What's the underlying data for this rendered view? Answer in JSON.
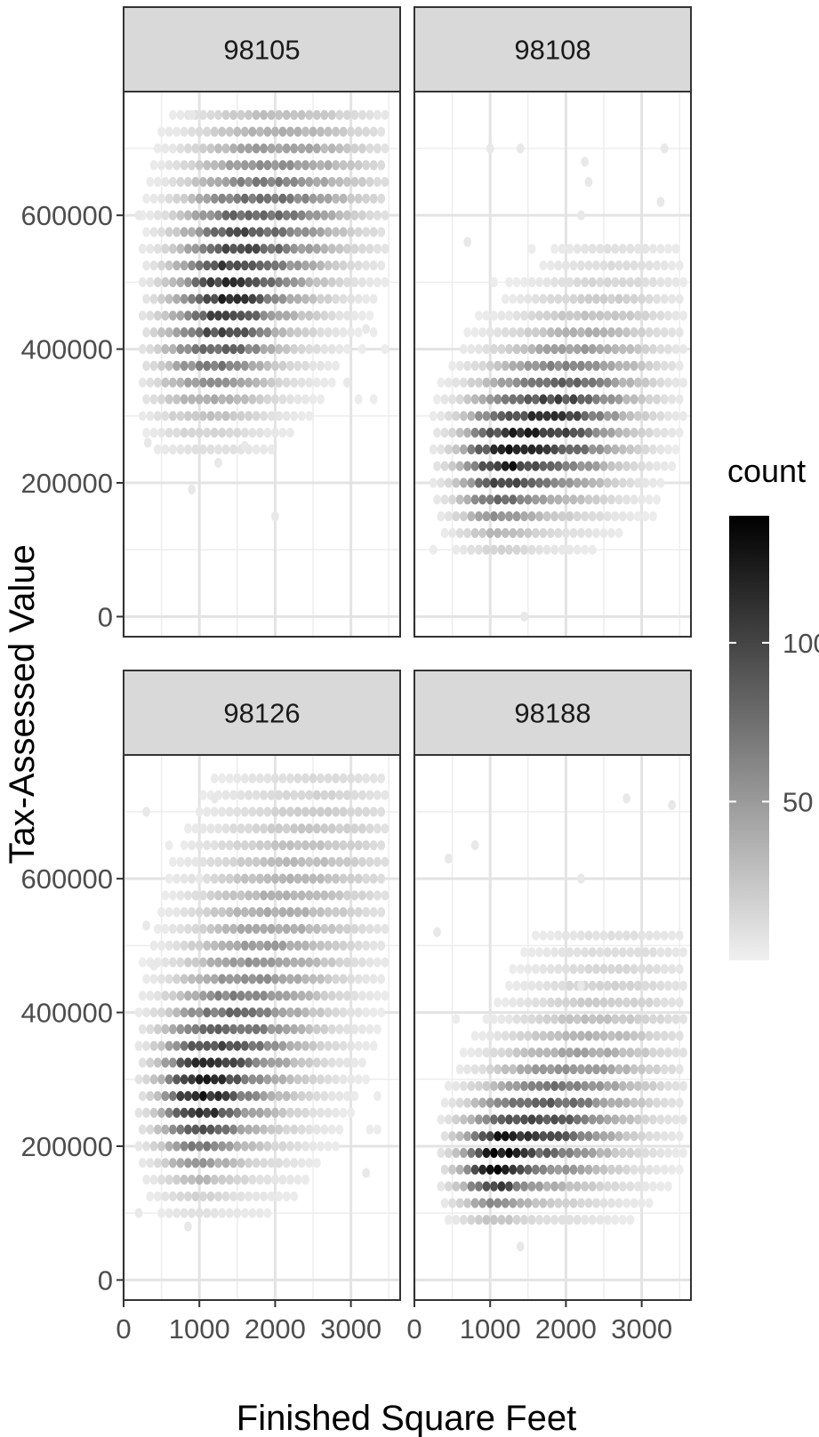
{
  "chart_data": {
    "type": "heatmap",
    "subtype": "hexbin",
    "xlabel": "Finished Square Feet",
    "ylabel": "Tax-Assessed Value",
    "xlim": [
      0,
      3650
    ],
    "ylim": [
      -30000,
      785000
    ],
    "x_ticks": [
      0,
      1000,
      2000,
      3000
    ],
    "x_tick_labels": [
      "0",
      "1000",
      "2000",
      "3000"
    ],
    "y_ticks": [
      0,
      200000,
      400000,
      600000
    ],
    "y_tick_labels": [
      "0",
      "200000",
      "400000",
      "600000"
    ],
    "grid": true,
    "legend": {
      "title": "count",
      "position": "right",
      "range": [
        0,
        140
      ],
      "ticks": [
        50,
        100
      ],
      "tick_labels": [
        "50",
        "100"
      ],
      "low_color": "#f0f0f0",
      "high_color": "#000000"
    },
    "panels": [
      {
        "name": "98105",
        "blobs": [
          {
            "x": 1300,
            "y": 460000,
            "sx": 380,
            "sy": 90000,
            "peak": 75
          },
          {
            "x": 1750,
            "y": 560000,
            "sx": 550,
            "sy": 110000,
            "peak": 55
          },
          {
            "x": 2400,
            "y": 650000,
            "sx": 650,
            "sy": 90000,
            "peak": 28
          },
          {
            "x": 800,
            "y": 380000,
            "sx": 300,
            "sy": 70000,
            "peak": 20
          }
        ],
        "x_range": [
          250,
          3450
        ],
        "y_range": [
          250000,
          750000
        ],
        "extra": [
          [
            200,
            600000
          ],
          [
            320,
            260000
          ],
          [
            900,
            190000
          ],
          [
            1600,
            255000
          ],
          [
            2000,
            150000
          ],
          [
            2950,
            350000
          ],
          [
            3200,
            430000
          ],
          [
            900,
            750000
          ],
          [
            1250,
            230000
          ]
        ]
      },
      {
        "name": "98108",
        "blobs": [
          {
            "x": 1100,
            "y": 220000,
            "sx": 320,
            "sy": 60000,
            "peak": 85
          },
          {
            "x": 1700,
            "y": 280000,
            "sx": 500,
            "sy": 70000,
            "peak": 80
          },
          {
            "x": 2200,
            "y": 330000,
            "sx": 500,
            "sy": 80000,
            "peak": 35
          },
          {
            "x": 2700,
            "y": 420000,
            "sx": 500,
            "sy": 110000,
            "peak": 12
          }
        ],
        "x_range": [
          250,
          3550
        ],
        "y_range": [
          100000,
          550000
        ],
        "extra": [
          [
            1450,
            0
          ],
          [
            1000,
            700000
          ],
          [
            1400,
            700000
          ],
          [
            2200,
            600000
          ],
          [
            2300,
            650000
          ],
          [
            3300,
            700000
          ],
          [
            3250,
            620000
          ],
          [
            2250,
            680000
          ],
          [
            700,
            560000
          ],
          [
            1250,
            450000
          ]
        ]
      },
      {
        "name": "98126",
        "blobs": [
          {
            "x": 950,
            "y": 270000,
            "sx": 300,
            "sy": 70000,
            "peak": 90
          },
          {
            "x": 1400,
            "y": 330000,
            "sx": 450,
            "sy": 90000,
            "peak": 55
          },
          {
            "x": 1900,
            "y": 460000,
            "sx": 600,
            "sy": 130000,
            "peak": 35
          },
          {
            "x": 2700,
            "y": 640000,
            "sx": 600,
            "sy": 100000,
            "peak": 15
          }
        ],
        "x_range": [
          200,
          3450
        ],
        "y_range": [
          100000,
          750000
        ],
        "extra": [
          [
            300,
            700000
          ],
          [
            200,
            100000
          ],
          [
            850,
            80000
          ],
          [
            1200,
            720000
          ],
          [
            3200,
            160000
          ],
          [
            1000,
            600000
          ],
          [
            400,
            470000
          ],
          [
            300,
            530000
          ]
        ]
      },
      {
        "name": "98188",
        "blobs": [
          {
            "x": 1050,
            "y": 175000,
            "sx": 280,
            "sy": 45000,
            "peak": 110
          },
          {
            "x": 1650,
            "y": 225000,
            "sx": 480,
            "sy": 60000,
            "peak": 70
          },
          {
            "x": 2200,
            "y": 280000,
            "sx": 550,
            "sy": 80000,
            "peak": 30
          },
          {
            "x": 2700,
            "y": 380000,
            "sx": 650,
            "sy": 120000,
            "peak": 12
          }
        ],
        "x_range": [
          350,
          3550
        ],
        "y_range": [
          90000,
          520000
        ],
        "extra": [
          [
            800,
            650000
          ],
          [
            450,
            630000
          ],
          [
            1400,
            50000
          ],
          [
            2200,
            600000
          ],
          [
            2800,
            720000
          ],
          [
            3400,
            710000
          ],
          [
            300,
            520000
          ],
          [
            2200,
            440000
          ]
        ]
      }
    ]
  }
}
